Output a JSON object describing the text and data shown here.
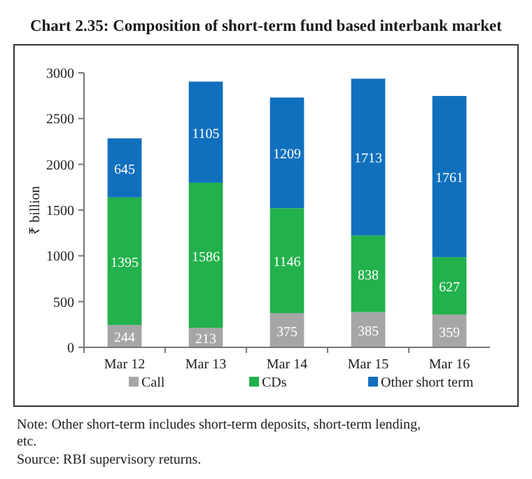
{
  "chart_data": {
    "type": "bar",
    "title": "Chart 2.35: Composition of short-term fund based interbank market",
    "ylabel": "₹ billion",
    "categories": [
      "Mar 12",
      "Mar 13",
      "Mar 14",
      "Mar 15",
      "Mar 16"
    ],
    "stacked": true,
    "data_labels": true,
    "legend": "bottom",
    "ylim": [
      0,
      3000
    ],
    "yticks": [
      0,
      500,
      1000,
      1500,
      2000,
      2500,
      3000
    ],
    "series": [
      {
        "name": "Call",
        "color": "#a6a6a6",
        "values": [
          244,
          213,
          375,
          385,
          359
        ]
      },
      {
        "name": "CDs",
        "color": "#22b14c",
        "values": [
          1395,
          1586,
          1146,
          838,
          627
        ]
      },
      {
        "name": "Other short term",
        "color": "#1170bd",
        "values": [
          645,
          1105,
          1209,
          1713,
          1761
        ]
      }
    ],
    "annotations": [
      "Note: Other short-term includes short-term deposits, short-term lending, etc.",
      "Source: RBI supervisory returns."
    ]
  }
}
